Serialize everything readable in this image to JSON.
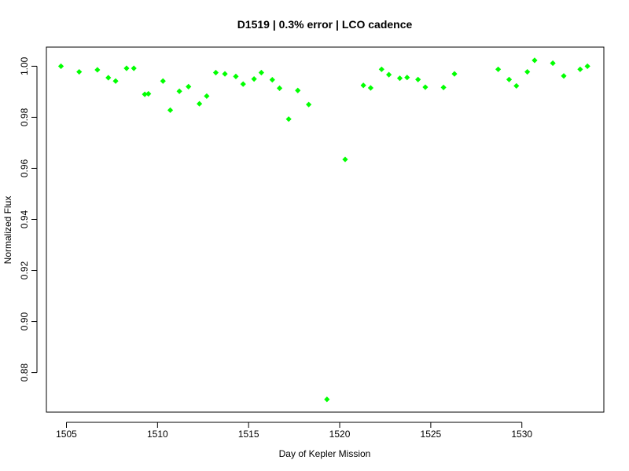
{
  "chart_data": {
    "type": "scatter",
    "title": "D1519 | 0.3% error | LCO cadence",
    "xlabel": "Day of Kepler Mission",
    "ylabel": "Normalized Flux",
    "xlim": [
      1503.9,
      1534.5
    ],
    "ylim": [
      0.8645,
      1.0075
    ],
    "x_ticks": [
      1505,
      1510,
      1515,
      1520,
      1525,
      1530
    ],
    "x_tick_labels": [
      "1505",
      "1510",
      "1515",
      "1520",
      "1525",
      "1530"
    ],
    "y_ticks": [
      0.88,
      0.9,
      0.92,
      0.94,
      0.96,
      0.98,
      1.0
    ],
    "y_tick_labels": [
      "0.88",
      "0.90",
      "0.92",
      "0.94",
      "0.96",
      "0.98",
      "1.00"
    ],
    "grid": false,
    "marker": "filled-diamond",
    "point_color": "#00ff00",
    "points": [
      {
        "x": 1504.7,
        "y": 1.0
      },
      {
        "x": 1505.7,
        "y": 0.9978
      },
      {
        "x": 1506.7,
        "y": 0.9986
      },
      {
        "x": 1507.3,
        "y": 0.9955
      },
      {
        "x": 1507.7,
        "y": 0.9942
      },
      {
        "x": 1508.3,
        "y": 0.9992
      },
      {
        "x": 1508.7,
        "y": 0.9992
      },
      {
        "x": 1509.3,
        "y": 0.989
      },
      {
        "x": 1509.5,
        "y": 0.9892
      },
      {
        "x": 1510.3,
        "y": 0.9942
      },
      {
        "x": 1510.7,
        "y": 0.9828
      },
      {
        "x": 1511.2,
        "y": 0.9902
      },
      {
        "x": 1511.7,
        "y": 0.992
      },
      {
        "x": 1512.3,
        "y": 0.9853
      },
      {
        "x": 1512.7,
        "y": 0.9883
      },
      {
        "x": 1513.2,
        "y": 0.9975
      },
      {
        "x": 1513.7,
        "y": 0.997
      },
      {
        "x": 1514.3,
        "y": 0.996
      },
      {
        "x": 1514.7,
        "y": 0.993
      },
      {
        "x": 1515.3,
        "y": 0.995
      },
      {
        "x": 1515.7,
        "y": 0.9975
      },
      {
        "x": 1516.3,
        "y": 0.9947
      },
      {
        "x": 1516.7,
        "y": 0.9914
      },
      {
        "x": 1517.2,
        "y": 0.9793
      },
      {
        "x": 1517.7,
        "y": 0.9905
      },
      {
        "x": 1518.3,
        "y": 0.985
      },
      {
        "x": 1519.3,
        "y": 0.8695
      },
      {
        "x": 1520.3,
        "y": 0.9635
      },
      {
        "x": 1521.3,
        "y": 0.9925
      },
      {
        "x": 1521.7,
        "y": 0.9915
      },
      {
        "x": 1522.3,
        "y": 0.9988
      },
      {
        "x": 1522.7,
        "y": 0.9967
      },
      {
        "x": 1523.3,
        "y": 0.9953
      },
      {
        "x": 1523.7,
        "y": 0.9956
      },
      {
        "x": 1524.3,
        "y": 0.9948
      },
      {
        "x": 1524.7,
        "y": 0.9918
      },
      {
        "x": 1525.7,
        "y": 0.9917
      },
      {
        "x": 1526.3,
        "y": 0.997
      },
      {
        "x": 1528.7,
        "y": 0.9988
      },
      {
        "x": 1529.3,
        "y": 0.9948
      },
      {
        "x": 1529.7,
        "y": 0.9923
      },
      {
        "x": 1530.3,
        "y": 0.9978
      },
      {
        "x": 1530.7,
        "y": 1.0023
      },
      {
        "x": 1531.7,
        "y": 1.0012
      },
      {
        "x": 1532.3,
        "y": 0.9962
      },
      {
        "x": 1533.2,
        "y": 0.9988
      },
      {
        "x": 1533.6,
        "y": 1.0
      }
    ]
  }
}
